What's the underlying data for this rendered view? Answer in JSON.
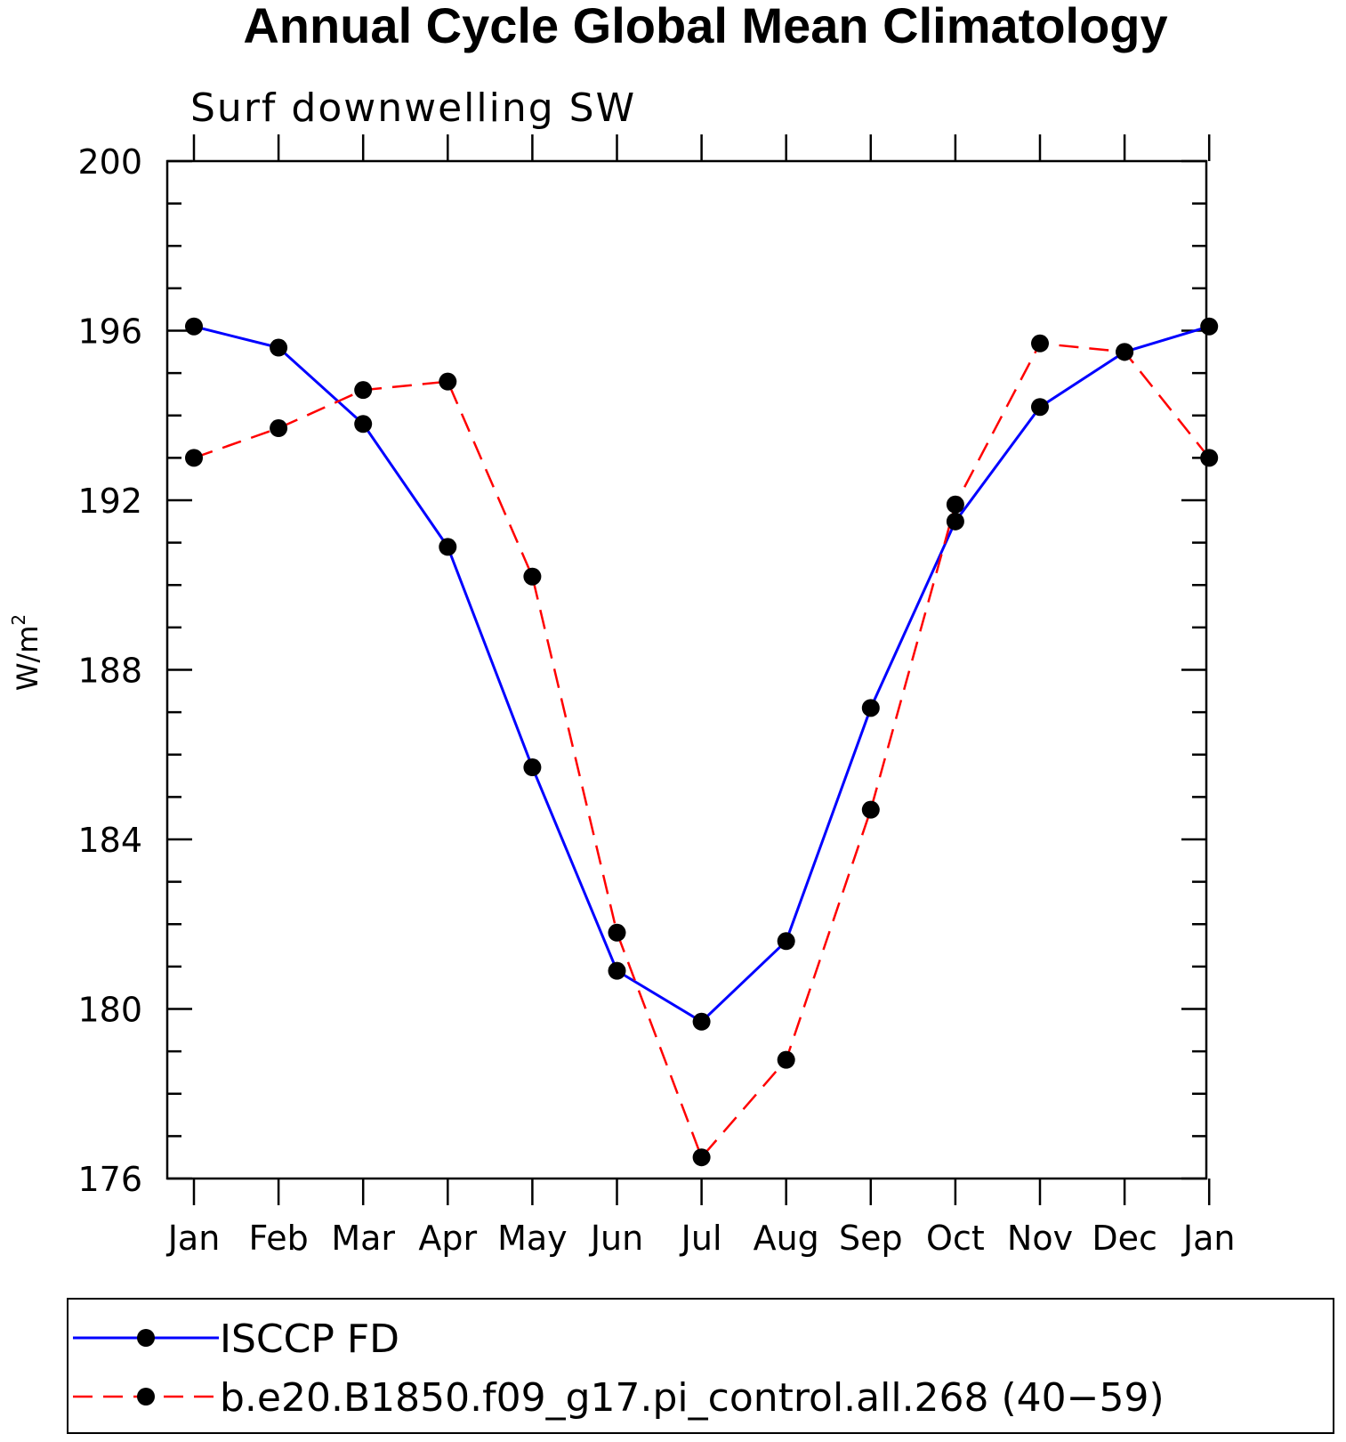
{
  "chart_data": {
    "type": "line",
    "title": "Annual Cycle Global Mean Climatology",
    "subtitle": "Surf downwelling SW",
    "ylabel": "W/m",
    "ylabel_sup": "2",
    "categories": [
      "Jan",
      "Feb",
      "Mar",
      "Apr",
      "May",
      "Jun",
      "Jul",
      "Aug",
      "Sep",
      "Oct",
      "Nov",
      "Dec",
      "Jan"
    ],
    "ylim": [
      176,
      200
    ],
    "yticks": [
      176,
      180,
      184,
      188,
      192,
      196,
      200
    ],
    "series": [
      {
        "name": "ISCCP FD",
        "color": "#0000ff",
        "style": "solid",
        "values": [
          196.1,
          195.6,
          193.8,
          190.9,
          185.7,
          180.9,
          179.7,
          181.6,
          187.1,
          191.5,
          194.2,
          195.5,
          196.1
        ]
      },
      {
        "name": "b.e20.B1850.f09_g17.pi_control.all.268 (40−59)",
        "color": "#ff0000",
        "style": "dashed",
        "values": [
          193.0,
          193.7,
          194.6,
          194.8,
          190.2,
          181.8,
          176.5,
          178.8,
          184.7,
          191.9,
          195.7,
          195.5,
          193.0
        ]
      }
    ],
    "legend_position": "bottom",
    "grid": false
  }
}
